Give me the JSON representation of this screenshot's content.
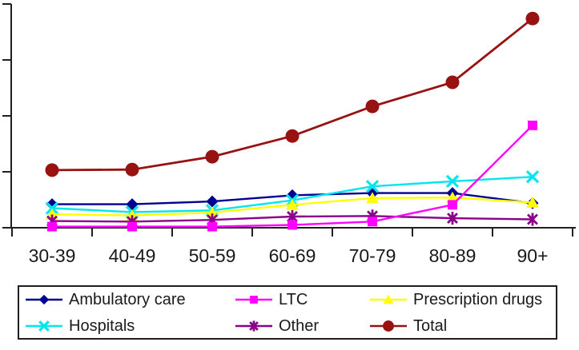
{
  "chart_data": {
    "type": "line",
    "title": "",
    "xlabel": "",
    "ylabel": "",
    "categories": [
      "30-39",
      "40-49",
      "50-59",
      "60-69",
      "70-79",
      "80-89",
      "90+"
    ],
    "y_axis": {
      "min": 0,
      "max": 4,
      "tick_interval": 1,
      "tick_labels_visible": false
    },
    "x_axis": {
      "tick_marks": "between_categories",
      "tick_labels_visible": true
    },
    "grid": false,
    "series": [
      {
        "name": "Ambulatory care",
        "marker": "diamond",
        "color": "#000090",
        "values": [
          0.42,
          0.42,
          0.47,
          0.58,
          0.62,
          0.62,
          0.44
        ]
      },
      {
        "name": "Hospitals",
        "marker": "x-cross",
        "color": "#00E5EE",
        "values": [
          0.35,
          0.28,
          0.31,
          0.49,
          0.74,
          0.83,
          0.91
        ]
      },
      {
        "name": "Prescription drugs",
        "marker": "triangle",
        "color": "#FFFF00",
        "values": [
          0.24,
          0.22,
          0.27,
          0.41,
          0.53,
          0.54,
          0.45
        ]
      },
      {
        "name": "Other",
        "marker": "asterisk",
        "color": "#8B008B",
        "values": [
          0.12,
          0.11,
          0.14,
          0.2,
          0.21,
          0.17,
          0.15
        ]
      },
      {
        "name": "LTC",
        "marker": "square",
        "color": "#FF00FF",
        "values": [
          0.02,
          0.02,
          0.02,
          0.05,
          0.11,
          0.41,
          1.83
        ]
      },
      {
        "name": "Total",
        "marker": "circle",
        "color": "#991212",
        "values": [
          1.03,
          1.04,
          1.27,
          1.64,
          2.17,
          2.6,
          3.74
        ]
      }
    ],
    "legend": {
      "position": "bottom",
      "border": true,
      "columns": 3,
      "order": [
        "Ambulatory care",
        "LTC",
        "Prescription drugs",
        "Hospitals",
        "Other",
        "Total"
      ]
    }
  }
}
